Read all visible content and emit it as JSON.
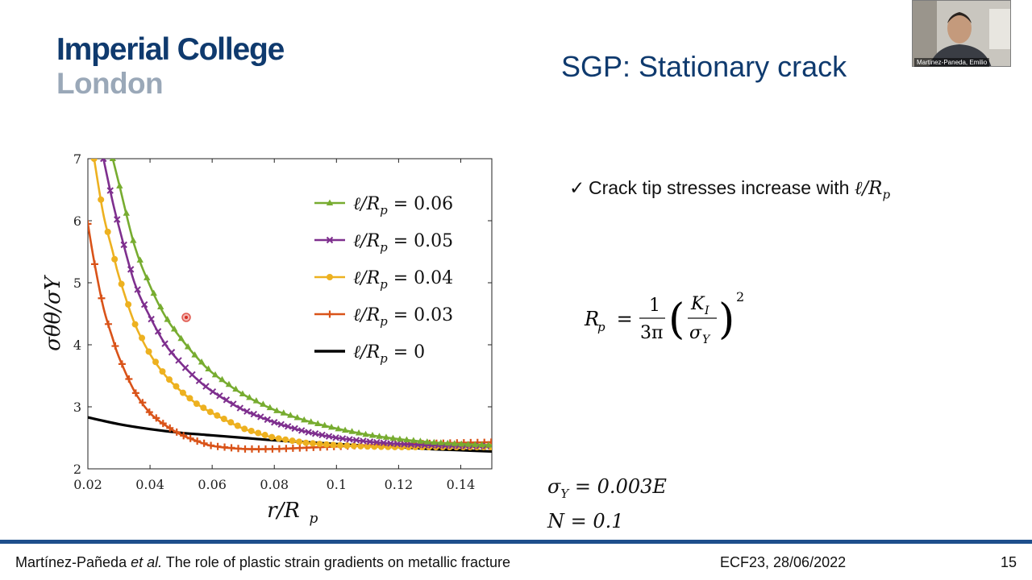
{
  "logo": {
    "line1": "Imperial College",
    "line2": "London"
  },
  "title": "SGP: Stationary crack",
  "webcam": {
    "name": "Martinez-Paneda, Emilio"
  },
  "bullet": {
    "check": "✓",
    "text": "Crack tip stresses increase with ",
    "math": "ℓ/R",
    "sub": "p"
  },
  "formula": {
    "lhs": "R",
    "lhs_sub": "p",
    "eq": " = ",
    "num": "1",
    "den": "3π",
    "inner_num": "K",
    "inner_num_sub": "I",
    "inner_den": "σ",
    "inner_den_sub": "Y",
    "exp": "2"
  },
  "params": {
    "sigma_y": "σ",
    "sigma_y_sub": "Y",
    "sigma_y_val": " = 0.003E",
    "n": "N = 0.1"
  },
  "footer": {
    "authors": "Martínez-Pañeda ",
    "etal": "et al.",
    "title": " The role of plastic strain gradients on metallic fracture",
    "conference": "ECF23, 28/06/2022",
    "page": "15"
  },
  "chart_data": {
    "type": "line",
    "xlabel": "r/R",
    "xlabel_sub": "p",
    "ylabel": "σθθ/σY",
    "xlim": [
      0.02,
      0.15
    ],
    "ylim": [
      2,
      7
    ],
    "xticks": [
      0.02,
      0.04,
      0.06,
      0.08,
      0.1,
      0.12,
      0.14
    ],
    "xtick_labels": [
      "0.02",
      "0.04",
      "0.06",
      "0.08",
      "0.1",
      "0.12",
      "0.14"
    ],
    "yticks": [
      2,
      3,
      4,
      5,
      6,
      7
    ],
    "ytick_labels": [
      "2",
      "3",
      "4",
      "5",
      "6",
      "7"
    ],
    "legend_position": "top-right",
    "series": [
      {
        "name": "ℓ/Rp = 0.06",
        "label": "ℓ/R",
        "label_sub": "p",
        "label_val": " = 0.06",
        "color": "#77ac30",
        "marker": "triangle",
        "x": [
          0.028,
          0.03,
          0.035,
          0.04,
          0.045,
          0.05,
          0.055,
          0.06,
          0.07,
          0.08,
          0.09,
          0.1,
          0.11,
          0.12,
          0.13,
          0.14,
          0.15
        ],
        "y": [
          7.0,
          6.6,
          5.6,
          4.95,
          4.45,
          4.1,
          3.8,
          3.55,
          3.2,
          2.95,
          2.78,
          2.65,
          2.55,
          2.48,
          2.43,
          2.4,
          2.38
        ]
      },
      {
        "name": "ℓ/Rp = 0.05",
        "label": "ℓ/R",
        "label_sub": "p",
        "label_val": " = 0.05",
        "color": "#7e2f8e",
        "marker": "x",
        "x": [
          0.025,
          0.028,
          0.03,
          0.035,
          0.04,
          0.045,
          0.05,
          0.055,
          0.06,
          0.07,
          0.08,
          0.09,
          0.1,
          0.11,
          0.12,
          0.13,
          0.14,
          0.15
        ],
        "y": [
          7.0,
          6.3,
          5.9,
          5.0,
          4.45,
          4.0,
          3.7,
          3.45,
          3.25,
          2.95,
          2.75,
          2.6,
          2.5,
          2.44,
          2.4,
          2.38,
          2.37,
          2.37
        ]
      },
      {
        "name": "ℓ/Rp = 0.04",
        "label": "ℓ/R",
        "label_sub": "p",
        "label_val": " = 0.04",
        "color": "#edb120",
        "marker": "circle",
        "x": [
          0.022,
          0.025,
          0.028,
          0.03,
          0.035,
          0.04,
          0.045,
          0.05,
          0.055,
          0.06,
          0.07,
          0.08,
          0.09,
          0.1,
          0.11,
          0.12,
          0.13,
          0.14,
          0.15
        ],
        "y": [
          7.0,
          6.1,
          5.5,
          5.1,
          4.35,
          3.85,
          3.5,
          3.25,
          3.05,
          2.9,
          2.65,
          2.5,
          2.42,
          2.38,
          2.36,
          2.35,
          2.35,
          2.35,
          2.35
        ]
      },
      {
        "name": "ℓ/Rp = 0.03",
        "label": "ℓ/R",
        "label_sub": "p",
        "label_val": " = 0.03",
        "color": "#d95319",
        "marker": "plus",
        "x": [
          0.02,
          0.022,
          0.025,
          0.028,
          0.03,
          0.035,
          0.04,
          0.045,
          0.05,
          0.055,
          0.06,
          0.07,
          0.08,
          0.09,
          0.1,
          0.11,
          0.12,
          0.13,
          0.14,
          0.15
        ],
        "y": [
          5.95,
          5.35,
          4.6,
          4.1,
          3.8,
          3.25,
          2.9,
          2.7,
          2.55,
          2.45,
          2.37,
          2.32,
          2.32,
          2.34,
          2.36,
          2.38,
          2.4,
          2.41,
          2.42,
          2.43
        ]
      },
      {
        "name": "ℓ/Rp = 0",
        "label": "ℓ/R",
        "label_sub": "p",
        "label_val": " = 0",
        "color": "#000000",
        "marker": "none",
        "x": [
          0.02,
          0.03,
          0.04,
          0.05,
          0.06,
          0.07,
          0.08,
          0.09,
          0.1,
          0.11,
          0.12,
          0.13,
          0.14,
          0.15
        ],
        "y": [
          2.83,
          2.72,
          2.64,
          2.58,
          2.54,
          2.5,
          2.46,
          2.43,
          2.4,
          2.37,
          2.35,
          2.32,
          2.3,
          2.28
        ]
      }
    ]
  }
}
